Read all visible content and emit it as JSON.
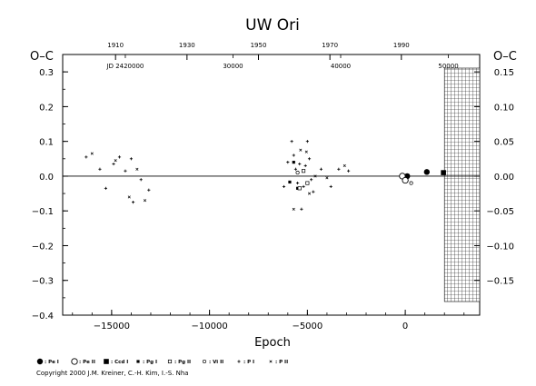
{
  "chart_data": {
    "type": "scatter",
    "title": "UW  Ori",
    "xlabel": "Epoch",
    "ylabel": "O–C",
    "ylabel_right": "O–C",
    "xlim": [
      -17500,
      3800
    ],
    "ylim": [
      -0.4,
      0.35
    ],
    "y2lim": [
      -0.2,
      0.175
    ],
    "grid": false,
    "x_ticks": [
      {
        "v": -15000,
        "label": "−15000"
      },
      {
        "v": -10000,
        "label": "−10000"
      },
      {
        "v": -5000,
        "label": "−5000"
      },
      {
        "v": 0,
        "label": "0"
      }
    ],
    "y_ticks": [
      {
        "v": 0.3,
        "label": "0.3"
      },
      {
        "v": 0.2,
        "label": "0.2"
      },
      {
        "v": 0.1,
        "label": "0.1"
      },
      {
        "v": 0.0,
        "label": "0.0"
      },
      {
        "v": -0.1,
        "label": "−0.1"
      },
      {
        "v": -0.2,
        "label": "−0.2"
      },
      {
        "v": -0.3,
        "label": "−0.3"
      },
      {
        "v": -0.4,
        "label": "−0.4"
      }
    ],
    "y2_ticks": [
      {
        "v": 0.15,
        "label": "0.15"
      },
      {
        "v": 0.1,
        "label": "0.10"
      },
      {
        "v": 0.05,
        "label": "0.05"
      },
      {
        "v": 0.0,
        "label": "0.00"
      },
      {
        "v": -0.05,
        "label": "−0.05"
      },
      {
        "v": -0.1,
        "label": "−0.10"
      },
      {
        "v": -0.15,
        "label": "−0.15"
      }
    ],
    "top_year_ticks": [
      {
        "v": -14800,
        "label": "1910"
      },
      {
        "v": -11150,
        "label": "1930"
      },
      {
        "v": -7500,
        "label": "1950"
      },
      {
        "v": -3850,
        "label": "1970"
      },
      {
        "v": -200,
        "label": "1990"
      }
    ],
    "jd_ticks": [
      {
        "v": -14300,
        "label": "JD 2420000"
      },
      {
        "v": -8800,
        "label": "30000"
      },
      {
        "v": -3300,
        "label": "40000"
      },
      {
        "v": 2200,
        "label": "50000"
      }
    ],
    "future_x_start": 2000,
    "zero_line": true,
    "series": [
      {
        "name": "Pe I",
        "marker": "filled-circle",
        "points": [
          [
            100,
            0.0
          ],
          [
            1100,
            0.012
          ]
        ]
      },
      {
        "name": "Pe II",
        "marker": "open-circle",
        "points": [
          [
            -150,
            0.0
          ],
          [
            0,
            -0.012
          ]
        ]
      },
      {
        "name": "Ccd I",
        "marker": "filled-square",
        "points": [
          [
            1950,
            0.01
          ]
        ]
      },
      {
        "name": "Pg I",
        "marker": "filled-square-small",
        "points": [
          [
            -5900,
            -0.017
          ],
          [
            -5700,
            0.04
          ],
          [
            -5500,
            -0.035
          ]
        ]
      },
      {
        "name": "Pg II",
        "marker": "open-square-small",
        "points": [
          [
            -5400,
            -0.035
          ],
          [
            -5200,
            0.015
          ],
          [
            -5000,
            -0.02
          ]
        ]
      },
      {
        "name": "Vi II",
        "marker": "open-circle-small",
        "points": [
          [
            300,
            -0.02
          ],
          [
            -5500,
            0.01
          ]
        ]
      },
      {
        "name": "P I",
        "marker": "plus",
        "points": [
          [
            -16300,
            0.055
          ],
          [
            -15600,
            0.02
          ],
          [
            -15300,
            -0.035
          ],
          [
            -14900,
            0.035
          ],
          [
            -14600,
            0.055
          ],
          [
            -14300,
            0.015
          ],
          [
            -14000,
            0.05
          ],
          [
            -13900,
            -0.075
          ],
          [
            -13500,
            -0.01
          ],
          [
            -13100,
            -0.04
          ],
          [
            -6200,
            -0.03
          ],
          [
            -6000,
            0.04
          ],
          [
            -5800,
            0.1
          ],
          [
            -5700,
            0.06
          ],
          [
            -5600,
            0.02
          ],
          [
            -5500,
            -0.02
          ],
          [
            -5400,
            0.035
          ],
          [
            -5300,
            -0.095
          ],
          [
            -5200,
            -0.03
          ],
          [
            -5100,
            0.03
          ],
          [
            -5000,
            0.1
          ],
          [
            -4900,
            0.05
          ],
          [
            -4800,
            -0.01
          ],
          [
            -4700,
            -0.045
          ],
          [
            -4300,
            0.02
          ],
          [
            -3800,
            -0.03
          ],
          [
            -3400,
            0.02
          ],
          [
            -2900,
            0.015
          ]
        ]
      },
      {
        "name": "P II",
        "marker": "cross",
        "points": [
          [
            -16000,
            0.065
          ],
          [
            -14800,
            0.045
          ],
          [
            -14100,
            -0.06
          ],
          [
            -13700,
            0.02
          ],
          [
            -13300,
            -0.07
          ],
          [
            -5700,
            -0.095
          ],
          [
            -5350,
            0.075
          ],
          [
            -5050,
            0.07
          ],
          [
            -4900,
            -0.05
          ],
          [
            -4600,
            0.0
          ],
          [
            -4000,
            -0.005
          ],
          [
            -3100,
            0.03
          ]
        ]
      }
    ],
    "legend_position": "bottom"
  },
  "copyright": "Copyright 2000 J.M. Kreiner, C.-H. Kim, I.-S. Nha"
}
